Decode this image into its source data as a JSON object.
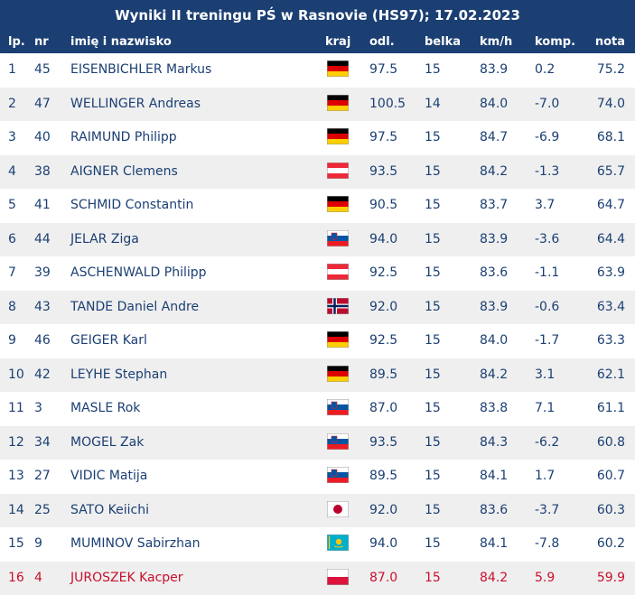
{
  "title": "Wyniki II treningu PŚ w Rasnovie (HS97); 17.02.2023",
  "columns": {
    "lp": "lp.",
    "nr": "nr",
    "name": "imię i nazwisko",
    "kraj": "kraj",
    "odl": "odl.",
    "belka": "belka",
    "kmh": "km/h",
    "komp": "komp.",
    "nota": "nota"
  },
  "highlight_color": "#c8102e",
  "rows": [
    {
      "lp": "1",
      "nr": "45",
      "name": "EISENBICHLER Markus",
      "flag": "ger-flag-icon",
      "odl": "97.5",
      "belka": "15",
      "kmh": "83.9",
      "komp": "0.2",
      "nota": "75.2"
    },
    {
      "lp": "2",
      "nr": "47",
      "name": "WELLINGER Andreas",
      "flag": "ger-flag-icon",
      "odl": "100.5",
      "belka": "14",
      "kmh": "84.0",
      "komp": "-7.0",
      "nota": "74.0"
    },
    {
      "lp": "3",
      "nr": "40",
      "name": "RAIMUND Philipp",
      "flag": "ger-flag-icon",
      "odl": "97.5",
      "belka": "15",
      "kmh": "84.7",
      "komp": "-6.9",
      "nota": "68.1"
    },
    {
      "lp": "4",
      "nr": "38",
      "name": "AIGNER Clemens",
      "flag": "aut-flag-icon",
      "odl": "93.5",
      "belka": "15",
      "kmh": "84.2",
      "komp": "-1.3",
      "nota": "65.7"
    },
    {
      "lp": "5",
      "nr": "41",
      "name": "SCHMID Constantin",
      "flag": "ger-flag-icon",
      "odl": "90.5",
      "belka": "15",
      "kmh": "83.7",
      "komp": "3.7",
      "nota": "64.7"
    },
    {
      "lp": "6",
      "nr": "44",
      "name": "JELAR Ziga",
      "flag": "slo-flag-icon",
      "odl": "94.0",
      "belka": "15",
      "kmh": "83.9",
      "komp": "-3.6",
      "nota": "64.4"
    },
    {
      "lp": "7",
      "nr": "39",
      "name": "ASCHENWALD Philipp",
      "flag": "aut-flag-icon",
      "odl": "92.5",
      "belka": "15",
      "kmh": "83.6",
      "komp": "-1.1",
      "nota": "63.9"
    },
    {
      "lp": "8",
      "nr": "43",
      "name": "TANDE Daniel Andre",
      "flag": "nor-flag-icon",
      "odl": "92.0",
      "belka": "15",
      "kmh": "83.9",
      "komp": "-0.6",
      "nota": "63.4"
    },
    {
      "lp": "9",
      "nr": "46",
      "name": "GEIGER Karl",
      "flag": "ger-flag-icon",
      "odl": "92.5",
      "belka": "15",
      "kmh": "84.0",
      "komp": "-1.7",
      "nota": "63.3"
    },
    {
      "lp": "10",
      "nr": "42",
      "name": "LEYHE Stephan",
      "flag": "ger-flag-icon",
      "odl": "89.5",
      "belka": "15",
      "kmh": "84.2",
      "komp": "3.1",
      "nota": "62.1"
    },
    {
      "lp": "11",
      "nr": "3",
      "name": "MASLE Rok",
      "flag": "slo-flag-icon",
      "odl": "87.0",
      "belka": "15",
      "kmh": "83.8",
      "komp": "7.1",
      "nota": "61.1"
    },
    {
      "lp": "12",
      "nr": "34",
      "name": "MOGEL Zak",
      "flag": "slo-flag-icon",
      "odl": "93.5",
      "belka": "15",
      "kmh": "84.3",
      "komp": "-6.2",
      "nota": "60.8"
    },
    {
      "lp": "13",
      "nr": "27",
      "name": "VIDIC Matija",
      "flag": "slo-flag-icon",
      "odl": "89.5",
      "belka": "15",
      "kmh": "84.1",
      "komp": "1.7",
      "nota": "60.7"
    },
    {
      "lp": "14",
      "nr": "25",
      "name": "SATO Keiichi",
      "flag": "jpn-flag-icon",
      "odl": "92.0",
      "belka": "15",
      "kmh": "83.6",
      "komp": "-3.7",
      "nota": "60.3"
    },
    {
      "lp": "15",
      "nr": "9",
      "name": "MUMINOV Sabirzhan",
      "flag": "kaz-flag-icon",
      "odl": "94.0",
      "belka": "15",
      "kmh": "84.1",
      "komp": "-7.8",
      "nota": "60.2"
    },
    {
      "lp": "16",
      "nr": "4",
      "name": "JUROSZEK Kacper",
      "flag": "pol-flag-icon",
      "odl": "87.0",
      "belka": "15",
      "kmh": "84.2",
      "komp": "5.9",
      "nota": "59.9",
      "highlight": true
    }
  ]
}
